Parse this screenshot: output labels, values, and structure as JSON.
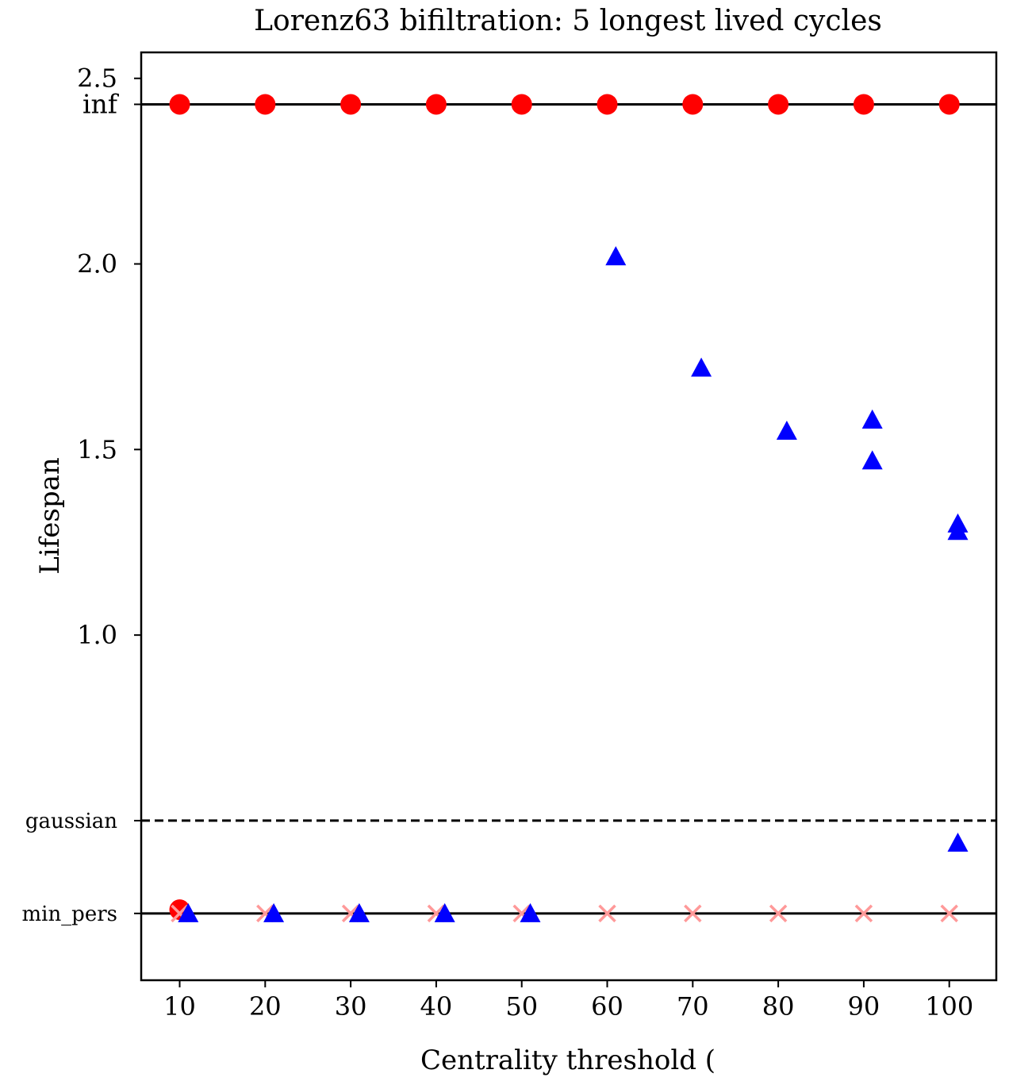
{
  "chart_data": {
    "type": "scatter",
    "title": "Lorenz63 bifiltration: 5 longest lived cycles",
    "xlabel": "Centrality threshold (",
    "ylabel": "Lifespan",
    "xlim": [
      5.5,
      105.5
    ],
    "ylim": [
      0.07,
      2.57
    ],
    "xticks": [
      10,
      20,
      30,
      40,
      50,
      60,
      70,
      80,
      90,
      100
    ],
    "x_tick_labels": [
      "10",
      "20",
      "30",
      "40",
      "50",
      "60",
      "70",
      "80",
      "90",
      "100"
    ],
    "yticks": [
      1.0,
      1.5,
      2.0,
      2.5
    ],
    "y_tick_labels": [
      "1.0",
      "1.5",
      "2.0",
      "2.5"
    ],
    "hlines": [
      {
        "label": "inf",
        "y": 2.43,
        "style": "solid",
        "color": "#000000"
      },
      {
        "label": "gaussian",
        "y": 0.5,
        "style": "dashed",
        "color": "#000000"
      },
      {
        "label": "min_pers",
        "y": 0.25,
        "style": "solid",
        "color": "#000000"
      }
    ],
    "series": [
      {
        "marker": "circle",
        "color": "#ff0000",
        "points": [
          [
            10,
            2.43
          ],
          [
            20,
            2.43
          ],
          [
            30,
            2.43
          ],
          [
            40,
            2.43
          ],
          [
            50,
            2.43
          ],
          [
            60,
            2.43
          ],
          [
            70,
            2.43
          ],
          [
            80,
            2.43
          ],
          [
            90,
            2.43
          ],
          [
            100,
            2.43
          ],
          [
            10,
            0.26
          ]
        ]
      },
      {
        "marker": "x",
        "color": "#ff9999",
        "points": [
          [
            10,
            0.25
          ],
          [
            20,
            0.25
          ],
          [
            30,
            0.25
          ],
          [
            40,
            0.25
          ],
          [
            50,
            0.25
          ],
          [
            60,
            0.25
          ],
          [
            70,
            0.25
          ],
          [
            80,
            0.25
          ],
          [
            90,
            0.25
          ],
          [
            100,
            0.25
          ]
        ]
      },
      {
        "marker": "triangle",
        "color": "#0000ff",
        "points": [
          [
            11,
            0.25
          ],
          [
            21,
            0.25
          ],
          [
            31,
            0.25
          ],
          [
            41,
            0.25
          ],
          [
            51,
            0.25
          ],
          [
            61,
            2.02
          ],
          [
            71,
            1.72
          ],
          [
            81,
            1.55
          ],
          [
            91,
            1.58
          ],
          [
            91,
            1.47
          ],
          [
            101,
            1.3
          ],
          [
            101,
            1.28
          ],
          [
            101,
            0.44
          ]
        ]
      }
    ]
  }
}
